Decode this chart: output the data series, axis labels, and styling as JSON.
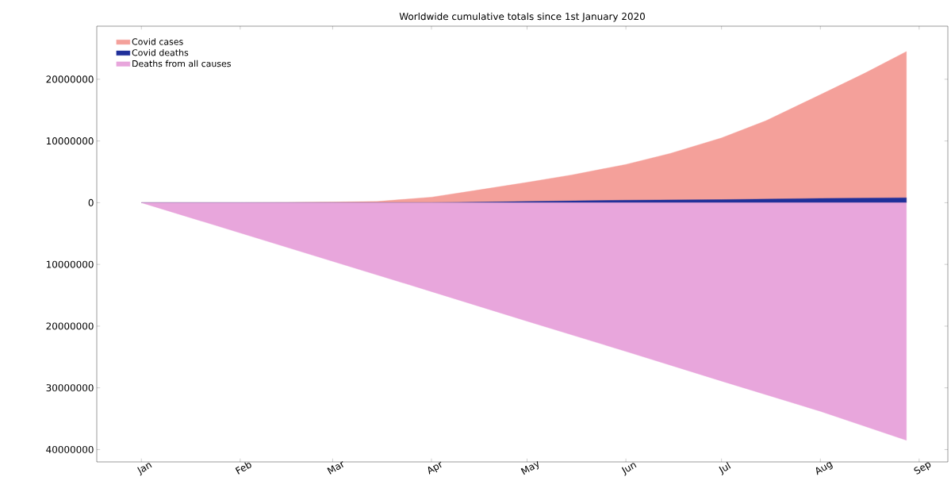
{
  "chart_data": {
    "type": "area",
    "title": "Worldwide cumulative totals since 1st January 2020",
    "xlim": [
      "2019-12-18",
      "2020-09-10"
    ],
    "xticks": [
      {
        "value": "2020-01-01",
        "label": "Jan"
      },
      {
        "value": "2020-02-01",
        "label": "Feb"
      },
      {
        "value": "2020-03-01",
        "label": "Mar"
      },
      {
        "value": "2020-04-01",
        "label": "Apr"
      },
      {
        "value": "2020-05-01",
        "label": "May"
      },
      {
        "value": "2020-06-01",
        "label": "Jun"
      },
      {
        "value": "2020-07-01",
        "label": "Jul"
      },
      {
        "value": "2020-08-01",
        "label": "Aug"
      },
      {
        "value": "2020-09-01",
        "label": "Sep"
      }
    ],
    "ylim": [
      -42000000,
      28600000
    ],
    "yticks": [
      20000000,
      10000000,
      0,
      {
        "value": -10000000,
        "label": "10000000"
      },
      {
        "value": -20000000,
        "label": "20000000"
      },
      {
        "value": -30000000,
        "label": "30000000"
      },
      {
        "value": -40000000,
        "label": "40000000"
      }
    ],
    "legend": "top left",
    "grid": false,
    "series": [
      {
        "name": "Covid cases",
        "color": "#f4a09a",
        "x": [
          "2020-01-01",
          "2020-02-01",
          "2020-03-01",
          "2020-03-15",
          "2020-04-01",
          "2020-04-15",
          "2020-05-01",
          "2020-05-15",
          "2020-06-01",
          "2020-06-15",
          "2020-07-01",
          "2020-07-15",
          "2020-08-01",
          "2020-08-15",
          "2020-08-28"
        ],
        "values": [
          0,
          0,
          100000,
          200000,
          900000,
          2000000,
          3300000,
          4500000,
          6200000,
          8000000,
          10500000,
          13300000,
          17500000,
          21000000,
          24500000
        ]
      },
      {
        "name": "Covid deaths",
        "color": "#1f2f9a",
        "x": [
          "2020-01-01",
          "2020-03-15",
          "2020-04-01",
          "2020-05-01",
          "2020-06-01",
          "2020-07-01",
          "2020-08-01",
          "2020-08-28"
        ],
        "values": [
          0,
          0,
          0,
          200000,
          400000,
          500000,
          700000,
          800000
        ]
      },
      {
        "name": "Deaths from all causes",
        "color": "#e8a6dc",
        "x": [
          "2020-01-01",
          "2020-02-01",
          "2020-03-01",
          "2020-04-01",
          "2020-05-01",
          "2020-06-01",
          "2020-07-01",
          "2020-08-01",
          "2020-08-28"
        ],
        "values": [
          0,
          -4900000,
          -9500000,
          -14400000,
          -19200000,
          -24100000,
          -28900000,
          -33800000,
          -38500000
        ]
      }
    ]
  }
}
